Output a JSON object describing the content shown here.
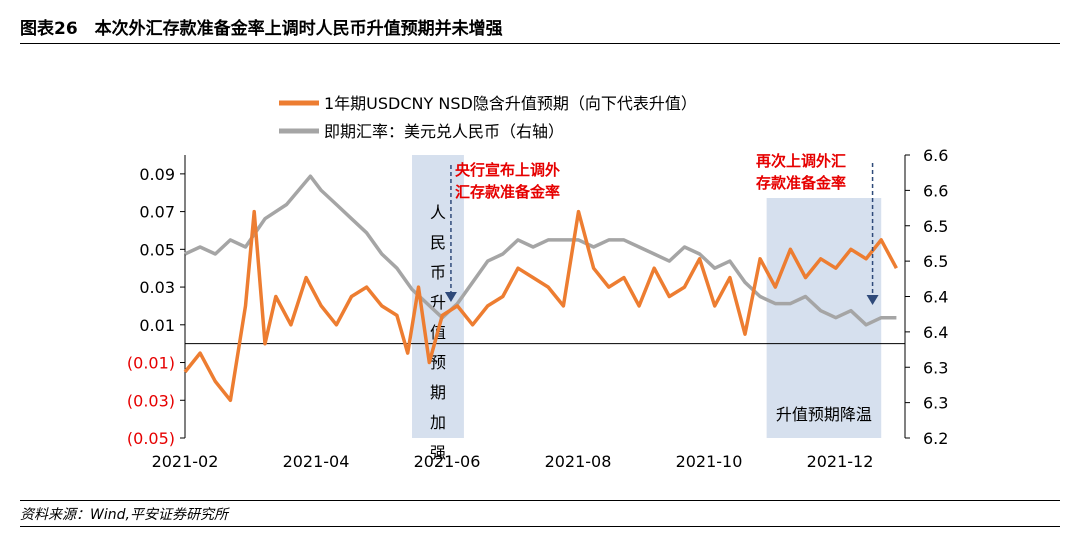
{
  "header": {
    "title": "图表26　本次外汇存款准备金率上调时人民币升值预期并未增强"
  },
  "footer": {
    "source": "资料来源：Wind,平安证券研究所"
  },
  "colors": {
    "orange": "#ED7D31",
    "gray": "#A5A5A5",
    "shade": "#D6E0EE",
    "red": "#E60000"
  },
  "chart_data": {
    "type": "line",
    "legend_position": "top-center",
    "grid": false,
    "x_ticks": [
      "2021-02",
      "2021-04",
      "2021-06",
      "2021-08",
      "2021-10",
      "2021-12"
    ],
    "y_left": {
      "range": [
        -0.05,
        0.1
      ],
      "ticks": [
        {
          "v": 0.09,
          "t": "0.09",
          "neg": false
        },
        {
          "v": 0.07,
          "t": "0.07",
          "neg": false
        },
        {
          "v": 0.05,
          "t": "0.05",
          "neg": false
        },
        {
          "v": 0.03,
          "t": "0.03",
          "neg": false
        },
        {
          "v": 0.01,
          "t": "0.01",
          "neg": false
        },
        {
          "v": -0.01,
          "t": "(0.01)",
          "neg": true
        },
        {
          "v": -0.03,
          "t": "(0.03)",
          "neg": true
        },
        {
          "v": -0.05,
          "t": "(0.05)",
          "neg": true
        }
      ]
    },
    "y_right": {
      "range": [
        6.2,
        6.6
      ],
      "ticks": [
        "6.6",
        "6.6",
        "6.5",
        "6.5",
        "6.4",
        "6.4",
        "6.3",
        "6.3",
        "6.2"
      ]
    },
    "series": [
      {
        "name": "1年期USDCNY NSD隐含升值预期（向下代表升值）",
        "axis": "left",
        "color": "#ED7D31",
        "x": [
          "2021-02-01",
          "2021-02-08",
          "2021-02-15",
          "2021-02-22",
          "2021-03-01",
          "2021-03-05",
          "2021-03-10",
          "2021-03-15",
          "2021-03-22",
          "2021-03-29",
          "2021-04-05",
          "2021-04-12",
          "2021-04-19",
          "2021-04-26",
          "2021-05-03",
          "2021-05-10",
          "2021-05-15",
          "2021-05-20",
          "2021-05-25",
          "2021-05-31",
          "2021-06-07",
          "2021-06-14",
          "2021-06-21",
          "2021-06-28",
          "2021-07-05",
          "2021-07-12",
          "2021-07-19",
          "2021-07-26",
          "2021-08-02",
          "2021-08-09",
          "2021-08-16",
          "2021-08-23",
          "2021-08-30",
          "2021-09-06",
          "2021-09-13",
          "2021-09-20",
          "2021-09-27",
          "2021-10-04",
          "2021-10-11",
          "2021-10-18",
          "2021-10-25",
          "2021-11-01",
          "2021-11-08",
          "2021-11-15",
          "2021-11-22",
          "2021-11-29",
          "2021-12-06",
          "2021-12-13",
          "2021-12-20",
          "2021-12-27"
        ],
        "values": [
          -0.015,
          -0.005,
          -0.02,
          -0.03,
          0.02,
          0.07,
          0.0,
          0.025,
          0.01,
          0.035,
          0.02,
          0.01,
          0.025,
          0.03,
          0.02,
          0.015,
          -0.005,
          0.03,
          -0.01,
          0.015,
          0.02,
          0.01,
          0.02,
          0.025,
          0.04,
          0.035,
          0.03,
          0.02,
          0.07,
          0.04,
          0.03,
          0.035,
          0.02,
          0.04,
          0.025,
          0.03,
          0.045,
          0.02,
          0.035,
          0.005,
          0.045,
          0.03,
          0.05,
          0.035,
          0.045,
          0.04,
          0.05,
          0.045,
          0.055,
          0.04
        ]
      },
      {
        "name": "即期汇率：美元兑人民币（右轴）",
        "axis": "right",
        "color": "#A5A5A5",
        "x": [
          "2021-02-01",
          "2021-02-08",
          "2021-02-15",
          "2021-02-22",
          "2021-03-01",
          "2021-03-10",
          "2021-03-20",
          "2021-03-31",
          "2021-04-05",
          "2021-04-12",
          "2021-04-19",
          "2021-04-26",
          "2021-05-03",
          "2021-05-10",
          "2021-05-17",
          "2021-05-24",
          "2021-05-31",
          "2021-06-07",
          "2021-06-14",
          "2021-06-21",
          "2021-06-28",
          "2021-07-05",
          "2021-07-12",
          "2021-07-19",
          "2021-07-26",
          "2021-08-02",
          "2021-08-09",
          "2021-08-16",
          "2021-08-23",
          "2021-08-30",
          "2021-09-06",
          "2021-09-13",
          "2021-09-20",
          "2021-09-27",
          "2021-10-04",
          "2021-10-11",
          "2021-10-18",
          "2021-10-25",
          "2021-11-01",
          "2021-11-08",
          "2021-11-15",
          "2021-11-22",
          "2021-11-29",
          "2021-12-06",
          "2021-12-13",
          "2021-12-20",
          "2021-12-27"
        ],
        "values": [
          6.46,
          6.47,
          6.46,
          6.48,
          6.47,
          6.51,
          6.53,
          6.57,
          6.55,
          6.53,
          6.51,
          6.49,
          6.46,
          6.44,
          6.41,
          6.39,
          6.37,
          6.39,
          6.42,
          6.45,
          6.46,
          6.48,
          6.47,
          6.48,
          6.48,
          6.48,
          6.47,
          6.48,
          6.48,
          6.47,
          6.46,
          6.45,
          6.47,
          6.46,
          6.44,
          6.45,
          6.42,
          6.4,
          6.39,
          6.39,
          6.4,
          6.38,
          6.37,
          6.38,
          6.36,
          6.37,
          6.37
        ]
      }
    ],
    "bands": [
      {
        "from": "2021-05-17",
        "to": "2021-06-10",
        "label": "人民币升值预期加强"
      },
      {
        "from": "2021-10-28",
        "to": "2021-12-20",
        "label": "升值预期降温"
      }
    ],
    "annotations": [
      {
        "x": "2021-06-04",
        "text_lines": [
          "央行宣布上调外",
          "汇存款准备金率"
        ]
      },
      {
        "x": "2021-12-16",
        "text_lines": [
          "再次上调外汇",
          "存款准备金率"
        ]
      }
    ]
  }
}
